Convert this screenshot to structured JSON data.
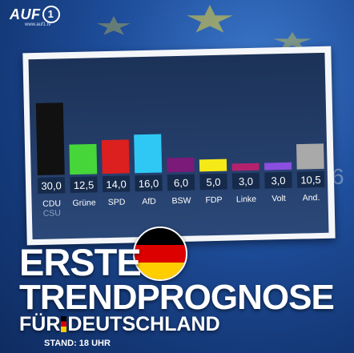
{
  "brand": {
    "logo_text": "AUF",
    "logo_one": "1",
    "url": "www.auf1.tv"
  },
  "colors": {
    "flag": [
      "#000000",
      "#dd0000",
      "#ffce00"
    ]
  },
  "chart_data": {
    "type": "bar",
    "categories": [
      "CDU CSU",
      "Grüne",
      "SPD",
      "AfD",
      "BSW",
      "FDP",
      "Linke",
      "Volt",
      "And."
    ],
    "label_lines": [
      [
        "CDU",
        "CSU"
      ],
      [
        "Grüne"
      ],
      [
        "SPD"
      ],
      [
        "AfD"
      ],
      [
        "BSW"
      ],
      [
        "FDP"
      ],
      [
        "Linke"
      ],
      [
        "Volt"
      ],
      [
        "And."
      ]
    ],
    "values": [
      30.0,
      12.5,
      14.0,
      16.0,
      6.0,
      5.0,
      3.0,
      3.0,
      10.5
    ],
    "value_labels": [
      "30,0",
      "12,5",
      "14,0",
      "16,0",
      "6,0",
      "5,0",
      "3,0",
      "3,0",
      "10,5"
    ],
    "colors": [
      "#111111",
      "#46d63a",
      "#dc1f1f",
      "#2fc8f5",
      "#7b1a78",
      "#f5ea17",
      "#b4226e",
      "#8a4fe0",
      "#a9a9a9"
    ],
    "ylim": [
      0,
      30
    ],
    "title": "",
    "xlabel": "",
    "ylabel": "",
    "grid": false
  },
  "headline": {
    "line1": "ERSTE",
    "line2": "TRENDPROGNOSE",
    "line3_a": "FÜR",
    "line3_b": "DEUTSCHLAND"
  },
  "status": {
    "stand": "STAND: 18 UHR"
  },
  "side_number": "6"
}
